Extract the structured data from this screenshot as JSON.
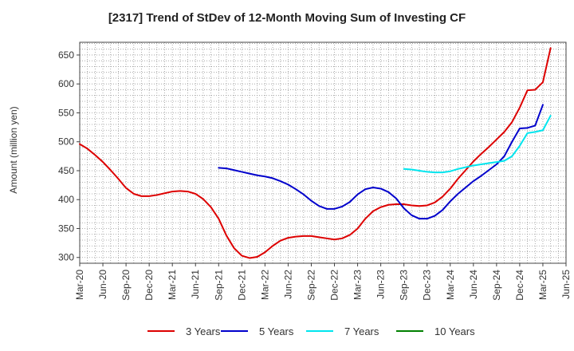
{
  "chart_data": {
    "type": "line",
    "title": "[2317]  Trend of StDev of 12-Month Moving Sum of Investing CF",
    "ylabel": "Amount (million yen)",
    "xlabel": "",
    "ylim": [
      290,
      672
    ],
    "yticks": [
      300,
      350,
      400,
      450,
      500,
      550,
      600,
      650
    ],
    "x_tick_labels": [
      "Mar-20",
      "Jun-20",
      "Sep-20",
      "Dec-20",
      "Mar-21",
      "Jun-21",
      "Sep-21",
      "Dec-21",
      "Mar-22",
      "Jun-22",
      "Sep-22",
      "Dec-22",
      "Mar-23",
      "Jun-23",
      "Sep-23",
      "Dec-23",
      "Mar-24",
      "Jun-24",
      "Sep-24",
      "Dec-24",
      "Mar-25",
      "Jun-25"
    ],
    "grid": true,
    "legend_placement": "bottom",
    "series": [
      {
        "name": "3 Years",
        "color": "#dd0000",
        "start": "Mar-20",
        "values": [
          496,
          488,
          477,
          465,
          451,
          436,
          420,
          410,
          406,
          406,
          408,
          411,
          414,
          415,
          414,
          410,
          401,
          387,
          367,
          338,
          316,
          303,
          299,
          301,
          309,
          320,
          329,
          334,
          336,
          337,
          337,
          335,
          333,
          331,
          333,
          339,
          350,
          367,
          380,
          387,
          391,
          392,
          392,
          390,
          389,
          390,
          395,
          405,
          419,
          436,
          451,
          466,
          479,
          491,
          504,
          517,
          534,
          559,
          589,
          590,
          603,
          662
        ]
      },
      {
        "name": "5 Years",
        "color": "#0000cc",
        "start": "Sep-21",
        "values": [
          455,
          454,
          451,
          448,
          445,
          442,
          440,
          437,
          432,
          426,
          418,
          409,
          398,
          389,
          384,
          384,
          388,
          396,
          409,
          418,
          421,
          419,
          413,
          402,
          385,
          373,
          367,
          367,
          372,
          382,
          397,
          410,
          421,
          432,
          441,
          451,
          461,
          475,
          500,
          523,
          524,
          528,
          564
        ]
      },
      {
        "name": "7 Years",
        "color": "#00e5ee",
        "start": "Sep-23",
        "values": [
          453,
          452,
          450,
          448,
          447,
          447,
          449,
          453,
          456,
          459,
          461,
          463,
          465,
          467,
          475,
          493,
          515,
          517,
          520,
          545
        ]
      },
      {
        "name": "10 Years",
        "color": "#008000",
        "start": "Mar-25",
        "values": []
      }
    ]
  }
}
